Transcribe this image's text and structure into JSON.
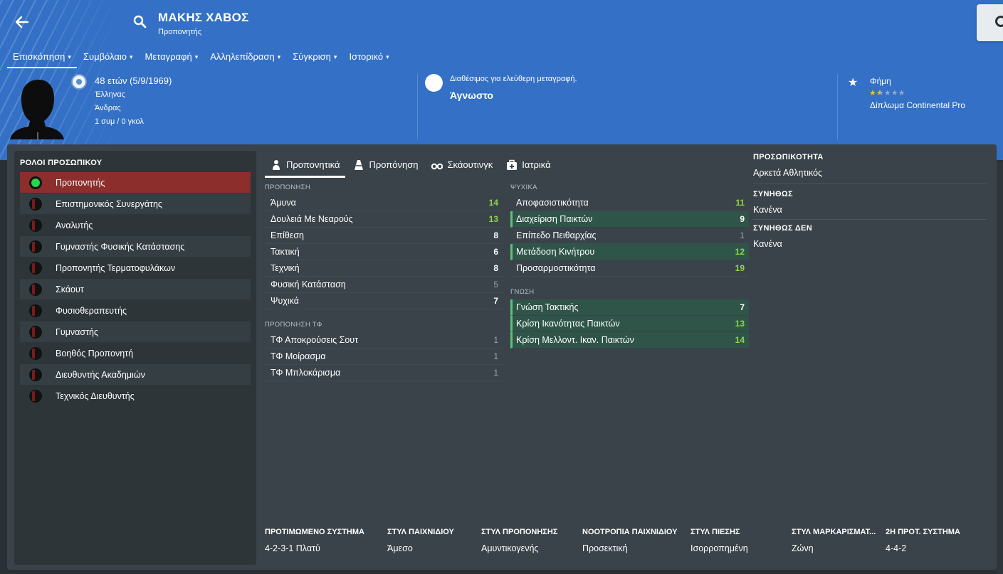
{
  "header": {
    "name": "ΜΑΚΗΣ ΧΑΒΟΣ",
    "role": "Προπονητής",
    "tabs": [
      "Επισκόπηση",
      "Συμβόλαιο",
      "Μεταγραφή",
      "Αλληλεπίδραση",
      "Σύγκριση",
      "Ιστορικό"
    ],
    "age": "48 ετών (5/9/1969)",
    "nationality": "Έλληνας",
    "gender": "Άνδρας",
    "caps": "1 συμ / 0 γκολ",
    "transfer_status": "Διαθέσιμος για ελεύθερη μεταγραφή.",
    "transfer_value": "Άγνωστο",
    "reputation_label": "Φήμη",
    "reputation_stars": 1.5,
    "license": "Δίπλωμα Continental Pro"
  },
  "roles": {
    "title": "ΡΟΛΟΙ ΠΡΟΣΩΠΙΚΟΥ",
    "items": [
      "Προπονητής",
      "Επιστημονικός Συνεργάτης",
      "Αναλυτής",
      "Γυμναστής Φυσικής Κατάστασης",
      "Προπονητής Τερματοφυλάκων",
      "Σκάουτ",
      "Φυσιοθεραπευτής",
      "Γυμναστής",
      "Βοηθός Προπονητή",
      "Διευθυντής Ακαδημιών",
      "Τεχνικός Διευθυντής"
    ]
  },
  "content_tabs": [
    "Προπονητικά",
    "Προπόνηση",
    "Σκάουτινγκ",
    "Ιατρικά"
  ],
  "coaching": {
    "title": "ΠΡΟΠΟΝΗΣΗ",
    "rows": [
      {
        "name": "Άμυνα",
        "value": "14"
      },
      {
        "name": "Δουλειά Με Νεαρούς",
        "value": "13"
      },
      {
        "name": "Επίθεση",
        "value": "8"
      },
      {
        "name": "Τακτική",
        "value": "6"
      },
      {
        "name": "Τεχνική",
        "value": "8"
      },
      {
        "name": "Φυσική Κατάσταση",
        "value": "5"
      },
      {
        "name": "Ψυχικά",
        "value": "7"
      }
    ]
  },
  "gk_coaching": {
    "title": "ΠΡΟΠΟΝΗΣΗ ΤΦ",
    "rows": [
      {
        "name": "ΤΦ Αποκρούσεις Σουτ",
        "value": "1"
      },
      {
        "name": "ΤΦ Μοίρασμα",
        "value": "1"
      },
      {
        "name": "ΤΦ Μπλοκάρισμα",
        "value": "1"
      }
    ]
  },
  "mental": {
    "title": "ΨΥΧΙΚΑ",
    "rows": [
      {
        "name": "Αποφασιστικότητα",
        "value": "11"
      },
      {
        "name": "Διαχείριση Παικτών",
        "value": "9"
      },
      {
        "name": "Επίπεδο Πειθαρχίας",
        "value": "1"
      },
      {
        "name": "Μετάδοση Κινήτρου",
        "value": "12"
      },
      {
        "name": "Προσαρμοστικότητα",
        "value": "19"
      }
    ]
  },
  "knowledge": {
    "title": "ΓΝΩΣΗ",
    "rows": [
      {
        "name": "Γνώση Τακτικής",
        "value": "7"
      },
      {
        "name": "Κρίση Ικανότητας Παικτών",
        "value": "13"
      },
      {
        "name": "Κρίση Μελλοντ. Ικαν. Παικτών",
        "value": "14"
      }
    ]
  },
  "personality": {
    "personality_title": "ΠΡΟΣΩΠΙΚΟΤΗΤΑ",
    "personality_value": "Αρκετά Αθλητικός",
    "likes_title": "ΣΥΝΗΘΩΣ",
    "likes_value": "Κανένα",
    "dislikes_title": "ΣΥΝΗΘΩΣ ΔΕΝ",
    "dislikes_value": "Κανένα"
  },
  "preferences": [
    {
      "label": "ΠΡΟΤΙΜΩΜΕΝΟ ΣΥΣΤΗΜΑ",
      "value": "4-2-3-1 Πλατύ"
    },
    {
      "label": "ΣΤΥΛ ΠΑΙΧΝΙΔΙΟΥ",
      "value": "Άμεσο"
    },
    {
      "label": "ΣΤΥΛ ΠΡΟΠΟΝΗΣΗΣ",
      "value": "Αμυντικογενής"
    },
    {
      "label": "ΝΟΟΤΡΟΠΙΑ ΠΑΙΧΝΙΔΙΟΥ",
      "value": "Προσεκτική"
    },
    {
      "label": "ΣΤΥΛ ΠΙΕΣΗΣ",
      "value": "Ισορροπημένη"
    },
    {
      "label": "ΣΤΥΛ ΜΑΡΚΑΡΙΣΜΑΤ...",
      "value": "Ζώνη"
    },
    {
      "label": "2Η ΠΡΟΤ. ΣΥΣΤΗΜΑ",
      "value": "4-4-2"
    }
  ],
  "colors": {
    "header_blue": "#3370c6",
    "selected_role": "#8b2e2c",
    "highlight_row": "#2f5548",
    "good_value": "#8fd44f",
    "star": "#f0c419"
  },
  "icons": {
    "back": "back-arrow-icon",
    "search": "search-icon",
    "reputation": "star-icon",
    "nationality": "globe-icon"
  }
}
